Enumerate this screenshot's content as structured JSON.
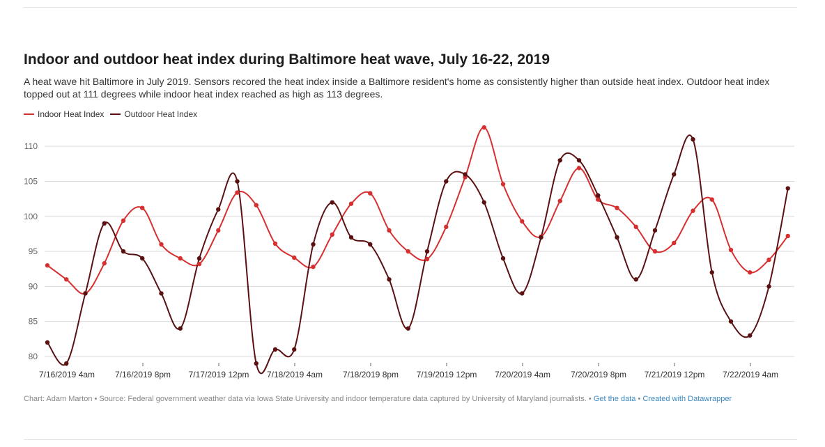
{
  "chart_data": {
    "type": "line",
    "title": "Indoor and outdoor heat index during Baltimore heat wave, July 16-22, 2019",
    "subtitle": "A heat wave hit Baltimore in July 2019. Sensors recored the heat index inside a Baltimore resident's home as consistently higher than outside heat index. Outdoor heat index topped out at 111 degrees while indoor heat index reached as high as 113 degrees.",
    "x_step_hours": 4,
    "x_tick_labels": [
      "7/16/2019 4am",
      "7/16/2019 8pm",
      "7/17/2019 12pm",
      "7/18/2019 4am",
      "7/18/2019 8pm",
      "7/19/2019 12pm",
      "7/20/2019 4am",
      "7/20/2019 8pm",
      "7/21/2019 12pm",
      "7/22/2019 4am"
    ],
    "y_ticks": [
      80,
      85,
      90,
      95,
      100,
      105,
      110
    ],
    "ylim": [
      79,
      113
    ],
    "grid": true,
    "legend_position": "top-left",
    "series": [
      {
        "name": "Indoor Heat Index",
        "color": "#d62f30",
        "values": [
          93,
          91,
          89,
          93.3,
          99.4,
          101.2,
          96,
          94,
          93.2,
          98,
          103.4,
          101.6,
          96.1,
          94.1,
          92.8,
          97.4,
          101.8,
          103.3,
          98,
          95,
          93.9,
          98.5,
          105.6,
          112.7,
          104.6,
          99.3,
          97.1,
          102.2,
          106.9,
          102.4,
          101.2,
          98.5,
          95,
          96.2,
          100.8,
          102.4,
          95.2,
          92,
          93.8,
          97.2
        ]
      },
      {
        "name": "Outdoor Heat Index",
        "color": "#5b1112",
        "values": [
          82,
          79,
          89,
          99,
          95,
          94,
          89,
          84,
          94,
          101,
          105,
          79,
          81,
          81,
          96,
          102,
          97,
          96,
          91,
          84,
          95,
          105,
          106,
          102,
          94,
          89,
          97,
          108,
          108,
          103,
          97,
          91,
          98,
          106,
          111,
          92,
          85,
          83,
          90,
          104
        ]
      }
    ]
  },
  "footer": {
    "credit": "Chart: Adam Marton • Source: Federal government weather data via Iowa State University and indoor temperature data captured by University of Maryland journalists. • ",
    "get_data": "Get the data",
    "separator": " • ",
    "created_with": "Created with Datawrapper"
  }
}
